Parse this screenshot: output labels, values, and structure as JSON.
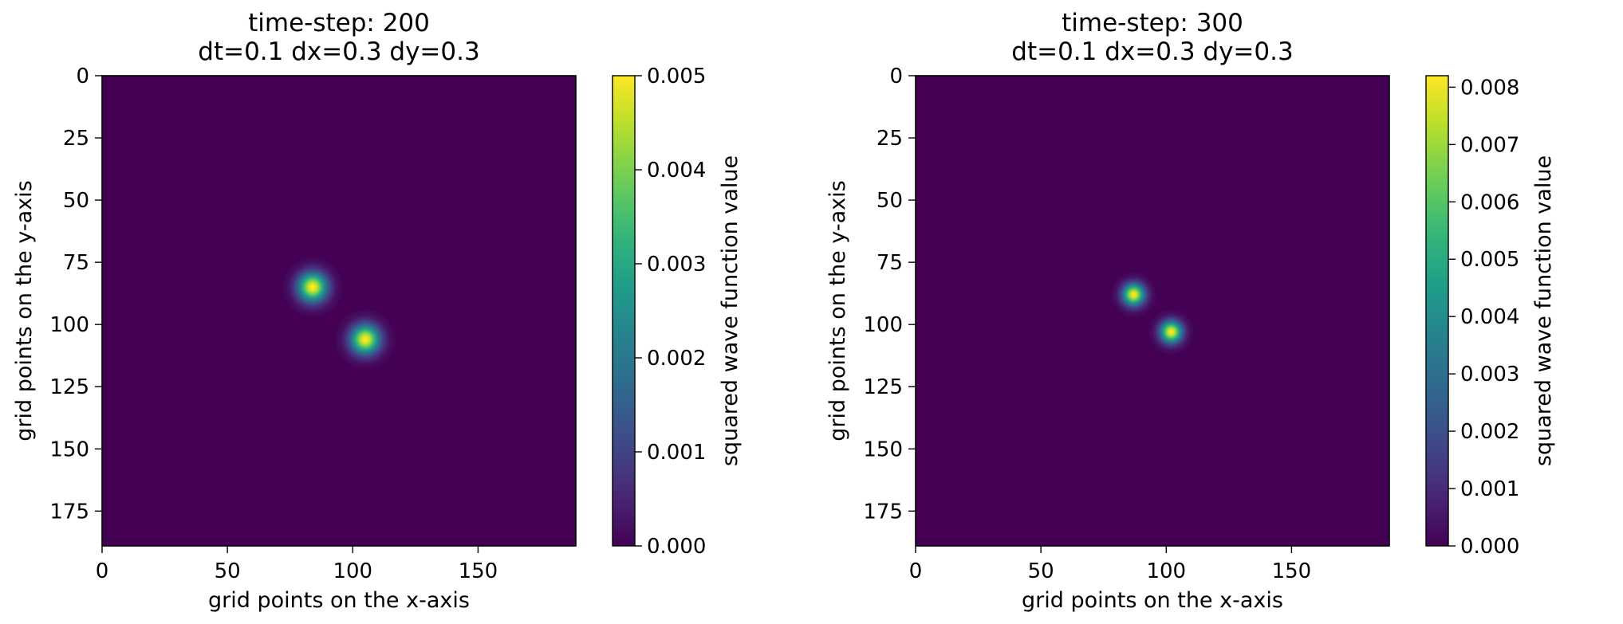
{
  "chart_data": [
    {
      "type": "heatmap",
      "title": "time-step: 200",
      "subtitle": "dt=0.1 dx=0.3 dy=0.3",
      "xlabel": "grid points on the x-axis",
      "ylabel": "grid points on the y-axis",
      "colorbar_label": "squared wave function value",
      "colormap": "viridis",
      "xlim": [
        0,
        189
      ],
      "ylim": [
        189,
        0
      ],
      "xticks": [
        "0",
        "50",
        "100",
        "150"
      ],
      "yticks": [
        "0",
        "25",
        "50",
        "75",
        "100",
        "125",
        "150",
        "175"
      ],
      "colorbar_range": [
        0,
        0.005
      ],
      "colorbar_ticks": [
        "0.000",
        "0.001",
        "0.002",
        "0.003",
        "0.004",
        "0.005"
      ],
      "peaks": [
        {
          "x": 84,
          "y": 85,
          "value": 0.005,
          "width": 4.0
        },
        {
          "x": 105,
          "y": 106,
          "value": 0.005,
          "width": 4.0
        }
      ],
      "background_value": 0.0
    },
    {
      "type": "heatmap",
      "title": "time-step: 300",
      "subtitle": "dt=0.1 dx=0.3 dy=0.3",
      "xlabel": "grid points on the x-axis",
      "ylabel": "grid points on the y-axis",
      "colorbar_label": "squared wave function value",
      "colormap": "viridis",
      "xlim": [
        0,
        189
      ],
      "ylim": [
        189,
        0
      ],
      "xticks": [
        "0",
        "50",
        "100",
        "150"
      ],
      "yticks": [
        "0",
        "25",
        "50",
        "75",
        "100",
        "125",
        "150",
        "175"
      ],
      "colorbar_range": [
        0,
        0.0082
      ],
      "colorbar_ticks": [
        "0.000",
        "0.001",
        "0.002",
        "0.003",
        "0.004",
        "0.005",
        "0.006",
        "0.007",
        "0.008"
      ],
      "peaks": [
        {
          "x": 87,
          "y": 88,
          "value": 0.0082,
          "width": 3.0
        },
        {
          "x": 102,
          "y": 103,
          "value": 0.0082,
          "width": 3.0
        }
      ],
      "background_value": 0.0
    }
  ]
}
